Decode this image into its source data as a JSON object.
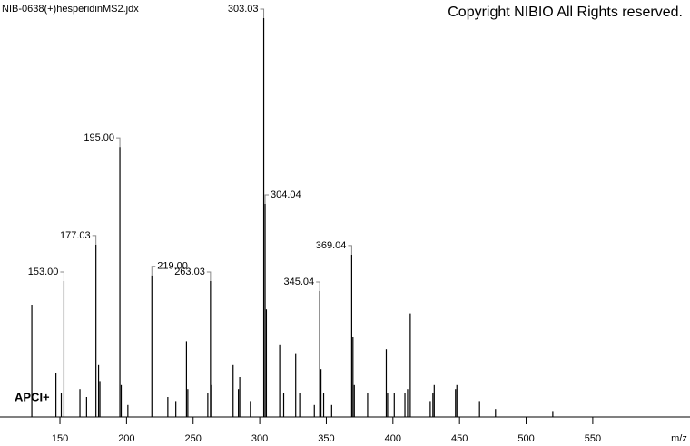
{
  "chart_data": {
    "type": "spectrum",
    "title": "NIB-0638(+)hesperidinMS2.jdx",
    "copyright": "Copyright NIBIO All Rights reserved.",
    "annotation": "APCI+",
    "x_label": "m/z",
    "color": "#000000",
    "xlim": [
      105,
      623
    ],
    "ylim": [
      0,
      100
    ],
    "xticks": [
      150,
      200,
      250,
      300,
      350,
      400,
      450,
      500,
      550
    ],
    "series": [
      {
        "x": [
          153.0,
          177.03,
          195.0,
          219.0,
          263.03,
          303.03,
          304.04,
          345.04,
          369.04
        ],
        "values": [
          34.1,
          43.2,
          67.7,
          35.5,
          34.1,
          100,
          53.4,
          31.6,
          40.7
        ],
        "x_labels": [
          "153.00",
          "177.03",
          "195.00",
          "219.00",
          "263.03",
          "303.03",
          "304.04",
          "345.04",
          "369.04"
        ]
      },
      {
        "x": [
          128.9,
          147,
          151,
          165,
          170,
          179,
          180,
          196,
          201,
          231,
          237,
          245,
          246,
          261,
          264,
          280,
          284,
          285,
          293,
          305,
          315,
          318,
          327,
          330,
          341,
          346,
          348,
          354,
          370,
          371,
          381,
          395,
          396,
          401,
          409,
          411,
          413,
          428,
          430,
          431,
          447,
          448,
          465,
          477,
          520
        ],
        "values": [
          28,
          11,
          6,
          7,
          5,
          13,
          9,
          8,
          3,
          5,
          4,
          19,
          7,
          6,
          8,
          13,
          7,
          10,
          4,
          27,
          18,
          6,
          16,
          6,
          3,
          12,
          6,
          3,
          20,
          8,
          6,
          17,
          6,
          6,
          6,
          7,
          26,
          4,
          6,
          8,
          7,
          8,
          4,
          2,
          1.5
        ]
      }
    ]
  }
}
